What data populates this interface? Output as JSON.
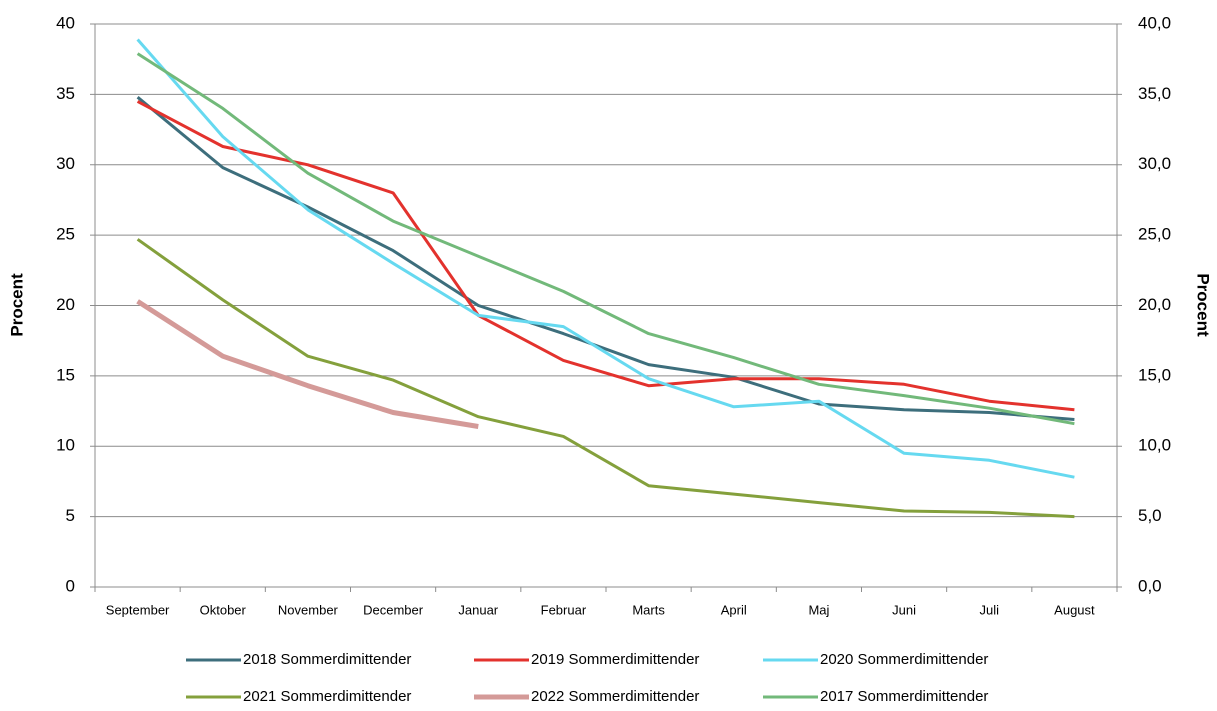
{
  "chart_data": {
    "type": "line",
    "categories": [
      "September",
      "Oktober",
      "November",
      "December",
      "Januar",
      "Februar",
      "Marts",
      "April",
      "Maj",
      "Juni",
      "Juli",
      "August"
    ],
    "series": [
      {
        "name": "2018 Sommerdimittender",
        "color": "#3d6e7c",
        "width": 3,
        "values": [
          34.8,
          29.8,
          27.0,
          23.9,
          20.0,
          18.0,
          15.8,
          14.9,
          13.0,
          12.6,
          12.4,
          11.9
        ]
      },
      {
        "name": "2019 Sommerdimittender",
        "color": "#e3322d",
        "width": 3,
        "values": [
          34.5,
          31.3,
          30.0,
          28.0,
          19.3,
          16.1,
          14.3,
          14.8,
          14.8,
          14.4,
          13.2,
          12.6
        ]
      },
      {
        "name": "2020 Sommerdimittender",
        "color": "#66d9f0",
        "width": 3,
        "values": [
          38.9,
          32.0,
          26.8,
          23.0,
          19.3,
          18.5,
          14.8,
          12.8,
          13.2,
          9.5,
          9.0,
          7.8
        ]
      },
      {
        "name": "2021 Sommerdimittender",
        "color": "#84a03c",
        "width": 3,
        "values": [
          24.7,
          20.4,
          16.4,
          14.7,
          12.1,
          10.7,
          7.2,
          6.6,
          6.0,
          5.4,
          5.3,
          5.0
        ]
      },
      {
        "name": "2022 Sommerdimittender",
        "color": "#d49a98",
        "width": 5,
        "values": [
          20.3,
          16.4,
          14.3,
          12.4,
          11.4,
          null,
          null,
          null,
          null,
          null,
          null,
          null
        ]
      },
      {
        "name": "2017 Sommerdimittender",
        "color": "#72b97a",
        "width": 3,
        "values": [
          37.9,
          34.0,
          29.4,
          26.0,
          23.5,
          21.0,
          18.0,
          16.3,
          14.4,
          13.6,
          12.7,
          11.6
        ]
      }
    ],
    "ylabel": "Procent",
    "y2label": "Procent",
    "ylim": [
      0,
      40
    ],
    "yticks": [
      0,
      5,
      10,
      15,
      20,
      25,
      30,
      35,
      40
    ],
    "y2lim": [
      0,
      40
    ],
    "y2ticks": [
      {
        "value": 0,
        "label": "0,0"
      },
      {
        "value": 5,
        "label": "5,0"
      },
      {
        "value": 10,
        "label": "10,0"
      },
      {
        "value": 15,
        "label": "15,0"
      },
      {
        "value": 20,
        "label": "20,0"
      },
      {
        "value": 25,
        "label": "25,0"
      },
      {
        "value": 30,
        "label": "30,0"
      },
      {
        "value": 35,
        "label": "35,0"
      },
      {
        "value": 40,
        "label": "40,0"
      }
    ],
    "grid": true,
    "legend": "bottom"
  }
}
